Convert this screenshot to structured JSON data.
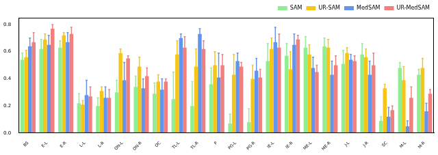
{
  "chart_data": {
    "type": "bar",
    "categories": [
      "BS",
      "E-L",
      "E-R",
      "L-L",
      "L-R",
      "ON-L",
      "ON-R",
      "OC",
      "TL-L",
      "TL-R",
      "P",
      "PG-L",
      "PG-R",
      "IE-L",
      "IE-R",
      "ME-L",
      "ME-R",
      "J-L",
      "J-R",
      "SC",
      "M-L",
      "M-R"
    ],
    "series": [
      {
        "name": "SAM",
        "color": "#90ee90",
        "values": [
          0.54,
          0.62,
          0.63,
          0.22,
          0.2,
          0.3,
          0.34,
          0.29,
          0.25,
          0.2,
          0.36,
          0.07,
          0.08,
          0.53,
          0.57,
          0.63,
          0.64,
          0.51,
          0.58,
          0.09,
          0.48,
          0.43
        ],
        "errors": [
          0.05,
          0.07,
          0.05,
          0.07,
          0.06,
          0.09,
          0.08,
          0.08,
          0.2,
          0.18,
          0.12,
          0.07,
          0.1,
          0.13,
          0.09,
          0.08,
          0.06,
          0.1,
          0.08,
          0.03,
          0.04,
          0.04
        ]
      },
      {
        "name": "UR-SAM",
        "color": "#f5c518",
        "values": [
          0.56,
          0.69,
          0.72,
          0.21,
          0.31,
          0.59,
          0.49,
          0.38,
          0.58,
          0.49,
          0.5,
          0.43,
          0.4,
          0.62,
          0.47,
          0.58,
          0.63,
          0.59,
          0.56,
          0.33,
          0.39,
          0.48
        ],
        "errors": [
          0.05,
          0.04,
          0.02,
          0.03,
          0.03,
          0.03,
          0.07,
          0.05,
          0.1,
          0.13,
          0.1,
          0.15,
          0.1,
          0.08,
          0.13,
          0.07,
          0.06,
          0.04,
          0.06,
          0.03,
          0.1,
          0.07
        ]
      },
      {
        "name": "MedSAM",
        "color": "#6495ed",
        "values": [
          0.64,
          0.65,
          0.67,
          0.28,
          0.26,
          0.39,
          0.33,
          0.32,
          0.7,
          0.73,
          0.41,
          0.53,
          0.46,
          0.67,
          0.65,
          0.48,
          0.43,
          0.54,
          0.43,
          0.12,
          0.05,
          0.16
        ],
        "errors": [
          0.06,
          0.07,
          0.07,
          0.11,
          0.08,
          0.13,
          0.07,
          0.08,
          0.03,
          0.04,
          0.18,
          0.06,
          0.09,
          0.11,
          0.08,
          0.08,
          0.1,
          0.04,
          0.1,
          0.07,
          0.04,
          0.06
        ]
      },
      {
        "name": "UR-MedSAM",
        "color": "#f08080",
        "values": [
          0.67,
          0.77,
          0.73,
          0.27,
          0.26,
          0.55,
          0.42,
          0.38,
          0.63,
          0.62,
          0.5,
          0.49,
          0.41,
          0.63,
          0.69,
          0.45,
          0.5,
          0.53,
          0.5,
          0.17,
          0.26,
          0.29
        ],
        "errors": [
          0.07,
          0.03,
          0.05,
          0.07,
          0.06,
          0.02,
          0.06,
          0.02,
          0.08,
          0.06,
          0.08,
          0.03,
          0.06,
          0.1,
          0.03,
          0.05,
          0.07,
          0.04,
          0.09,
          0.03,
          0.08,
          0.03
        ]
      }
    ],
    "ylim": [
      0,
      0.85
    ],
    "yticks": [
      {
        "value": 0,
        "label": "0.0"
      },
      0.2,
      0.4,
      0.6,
      0.8
    ],
    "grid": false,
    "legend": "upper right"
  }
}
